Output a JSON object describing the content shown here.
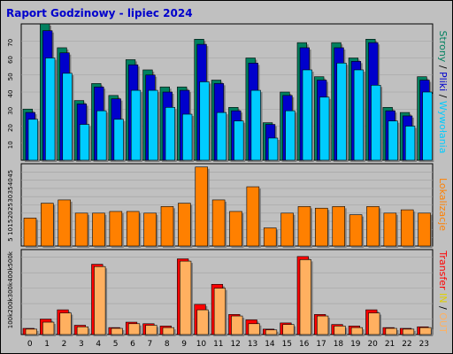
{
  "title": "Raport Godzinowy -  lipiec 2024",
  "colors": {
    "background": "#c0c0c0",
    "title": "#0000cc",
    "strony": "#00805f",
    "pliki": "#0000cc",
    "wywolania": "#00ccff",
    "lokalizacje": "#ff8000",
    "transfer_in": "#ff0000",
    "transfer_out": "#ffb060",
    "separator_green": "#00805f",
    "separator_red": "#cc0000",
    "separator_orange": "#ff8000"
  },
  "side_labels": {
    "top": {
      "strony": "Strony",
      "slash1": " / ",
      "pliki": "Pliki",
      "slash2": " / ",
      "wywolania": "Wywołania"
    },
    "middle": {
      "lokalizacje": "Lokalizacje"
    },
    "bottom": {
      "transfer": "Transfer",
      "in": "IN",
      "slash": " / ",
      "out": "OUT"
    }
  },
  "chart_data": [
    {
      "type": "bar",
      "panel": "top",
      "categories": [
        "0",
        "1",
        "2",
        "3",
        "4",
        "5",
        "6",
        "7",
        "8",
        "9",
        "10",
        "11",
        "12",
        "13",
        "14",
        "15",
        "16",
        "17",
        "18",
        "19",
        "20",
        "21",
        "22",
        "23"
      ],
      "yticks": [
        "10",
        "20",
        "30",
        "40",
        "50",
        "60",
        "70"
      ],
      "ylim": [
        0,
        80
      ],
      "series": [
        {
          "name": "Wywołania",
          "values": [
            30,
            80,
            66,
            35,
            45,
            38,
            59,
            53,
            43,
            43,
            71,
            47,
            31,
            60,
            22,
            40,
            69,
            49,
            69,
            60,
            71,
            31,
            28,
            49
          ]
        },
        {
          "name": "Pliki",
          "values": [
            28,
            76,
            63,
            33,
            43,
            36,
            56,
            50,
            40,
            41,
            68,
            45,
            29,
            57,
            21,
            38,
            66,
            47,
            66,
            58,
            69,
            29,
            26,
            47
          ]
        },
        {
          "name": "Strony",
          "values": [
            24,
            60,
            51,
            21,
            29,
            24,
            41,
            41,
            31,
            27,
            46,
            28,
            23,
            41,
            13,
            29,
            53,
            37,
            57,
            53,
            44,
            23,
            20,
            40
          ]
        }
      ]
    },
    {
      "type": "bar",
      "panel": "middle",
      "categories": [
        "0",
        "1",
        "2",
        "3",
        "4",
        "5",
        "6",
        "7",
        "8",
        "9",
        "10",
        "11",
        "12",
        "13",
        "14",
        "15",
        "16",
        "17",
        "18",
        "19",
        "20",
        "21",
        "22",
        "23"
      ],
      "yticks": [
        "5",
        "10",
        "15",
        "20",
        "25",
        "30",
        "35",
        "40",
        "45"
      ],
      "ylim": [
        0,
        50
      ],
      "series": [
        {
          "name": "Lokalizacje",
          "values": [
            17,
            26,
            28,
            20,
            20,
            21,
            21,
            20,
            24,
            26,
            48,
            28,
            21,
            36,
            11,
            20,
            24,
            23,
            24,
            19,
            24,
            20,
            22,
            20
          ]
        }
      ]
    },
    {
      "type": "bar",
      "panel": "bottom",
      "categories": [
        "0",
        "1",
        "2",
        "3",
        "4",
        "5",
        "6",
        "7",
        "8",
        "9",
        "10",
        "11",
        "12",
        "13",
        "14",
        "15",
        "16",
        "17",
        "18",
        "19",
        "20",
        "21",
        "22",
        "23"
      ],
      "yticks": [
        "100k",
        "200k",
        "300k",
        "400k",
        "500k"
      ],
      "ylim": [
        0,
        550000
      ],
      "series": [
        {
          "name": "IN",
          "values": [
            40000,
            100000,
            160000,
            60000,
            455000,
            45000,
            80000,
            70000,
            55000,
            490000,
            195000,
            325000,
            130000,
            95000,
            35000,
            75000,
            505000,
            130000,
            65000,
            55000,
            160000,
            45000,
            40000,
            50000
          ]
        },
        {
          "name": "OUT",
          "values": [
            35000,
            80000,
            140000,
            50000,
            440000,
            40000,
            70000,
            60000,
            45000,
            475000,
            160000,
            300000,
            120000,
            70000,
            30000,
            65000,
            485000,
            120000,
            55000,
            45000,
            140000,
            40000,
            35000,
            45000
          ]
        }
      ]
    }
  ]
}
